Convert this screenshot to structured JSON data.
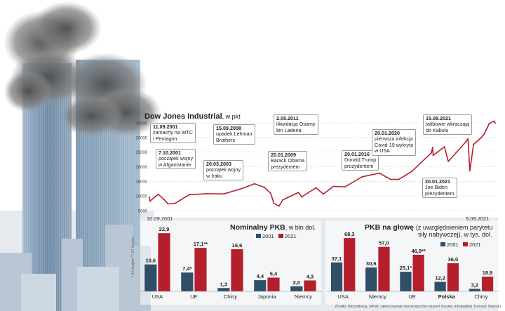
{
  "colors": {
    "line": "#b51f2c",
    "bar2001": "#2f4e68",
    "bar2021": "#b51f2c",
    "grid": "#c9c9c9",
    "tower": "#8da7bf",
    "smoke": "#6a6a6a"
  },
  "dow": {
    "title": "Dow Jones Industrial",
    "unit": ", w pkt",
    "start_label": "10.09.2001",
    "end_label": "9.09.2021",
    "events": [
      {
        "date": "11.09.2001",
        "text": [
          "zamachy na WTC",
          "i Pentagon"
        ]
      },
      {
        "date": "7.10.2001",
        "text": [
          "początek wojny",
          "w Afganistanie"
        ]
      },
      {
        "date": "20.03.2003",
        "text": [
          "początek wojny",
          "w Iraku"
        ]
      },
      {
        "date": "15.09.2008",
        "text": [
          "upadek Lehman",
          "Brothers"
        ]
      },
      {
        "date": "2.05.2011",
        "text": [
          "likwidacja Osamy",
          "bin Ladena"
        ]
      },
      {
        "date": "20.01.2009",
        "text": [
          "Barack Obama",
          "prezydentem"
        ]
      },
      {
        "date": "20.01.2016",
        "text": [
          "Donald Trump",
          "prezydentem"
        ]
      },
      {
        "date": "20.01.2020",
        "text": [
          "pierwsza infekcja",
          "Covid-19 wykryta",
          "w USA"
        ]
      },
      {
        "date": "15.08.2021",
        "text": [
          "talibowie wkraczają",
          "do Kabulu"
        ]
      },
      {
        "date": "20.01.2021",
        "text": [
          "Joe Biden",
          "prezydentem"
        ]
      }
    ]
  },
  "chart_data": [
    {
      "type": "line",
      "title": "Dow Jones Industrial",
      "ylim": [
        5000,
        35000
      ],
      "yticks": [
        5000,
        10000,
        15000,
        20000,
        25000,
        30000,
        35000
      ],
      "x_start": "2001-09-10",
      "x_end": "2021-09-09",
      "series": [
        {
          "x": [
            "2001-09-10",
            "2001-09-21",
            "2002-03-15",
            "2002-07-15",
            "2002-10-09",
            "2003-03-11",
            "2003-12-31",
            "2004-12-31",
            "2005-12-31",
            "2006-12-31",
            "2007-10-09",
            "2008-05-01",
            "2008-09-15",
            "2008-11-20",
            "2009-03-09",
            "2009-06-01",
            "2010-04-26",
            "2010-07-02",
            "2011-04-29",
            "2011-10-03",
            "2012-05-01",
            "2012-12-31",
            "2013-12-31",
            "2014-12-31",
            "2015-08-25",
            "2016-02-11",
            "2016-11-08",
            "2017-12-31",
            "2018-01-26",
            "2018-02-08",
            "2018-10-03",
            "2018-12-24",
            "2019-12-31",
            "2020-02-12",
            "2020-03-23",
            "2020-06-08",
            "2020-11-24",
            "2021-01-20",
            "2021-05-07",
            "2021-08-16",
            "2021-09-09"
          ],
          "y": [
            9600,
            8235,
            10600,
            8800,
            7286,
            7524,
            10453,
            10783,
            10718,
            12463,
            14165,
            13000,
            10917,
            7552,
            6547,
            8700,
            11205,
            9686,
            12810,
            10655,
            13279,
            13104,
            16577,
            17823,
            15666,
            15660,
            18332,
            24719,
            26617,
            23860,
            26828,
            21792,
            28538,
            29551,
            18592,
            27572,
            30046,
            31188,
            34777,
            35625,
            34879
          ]
        }
      ]
    },
    {
      "type": "bar",
      "title": "Nominalny PKB",
      "subtitle": ", w bln dol.",
      "categories": [
        "USA",
        "UE",
        "Chiny",
        "Japonia",
        "Niemcy"
      ],
      "value_labels": {
        "2001": [
          "10,6",
          "7,4*",
          "1,3",
          "4,4",
          "2,0"
        ],
        "2021": [
          "22,9",
          "17,1**",
          "16,6",
          "5,4",
          "4,3"
        ]
      },
      "series": [
        {
          "name": "2001",
          "values": [
            10.6,
            7.4,
            1.3,
            4.4,
            2.0
          ]
        },
        {
          "name": "2021",
          "values": [
            22.9,
            17.1,
            16.6,
            5.4,
            4.3
          ]
        }
      ],
      "footnote": "* 15 krajów ** 27 krajów"
    },
    {
      "type": "bar",
      "title": "PKB na głowę",
      "subtitle": "(z uwzględnieniem parytetu siły nabywczej), w tys. dol.",
      "subtitle_lines": [
        "(z uwzględnieniem parytetu",
        "siły nabywczej), w tys. dol."
      ],
      "categories": [
        "USA",
        "Niemcy",
        "UE",
        "Polska",
        "Chiny"
      ],
      "value_labels": {
        "2001": [
          "37,1",
          "30,6",
          "25,1*",
          "12,2",
          "3,2"
        ],
        "2021": [
          "68,3",
          "57,0",
          "46,9**",
          "36,0",
          "18,9"
        ]
      },
      "series": [
        {
          "name": "2001",
          "values": [
            37.1,
            30.6,
            25.1,
            12.2,
            3.2
          ]
        },
        {
          "name": "2021",
          "values": [
            68.3,
            57.0,
            46.9,
            36.0,
            18.9
          ]
        }
      ]
    }
  ],
  "tick_labels": [
    "5000",
    "10000",
    "15000",
    "20000",
    "25000",
    "30000",
    "35000"
  ],
  "source": "Źródło: Bloomberg, MFW, opracowanie merytoryczne Hubert Kozieł, infografika Tomasz Sitarski"
}
